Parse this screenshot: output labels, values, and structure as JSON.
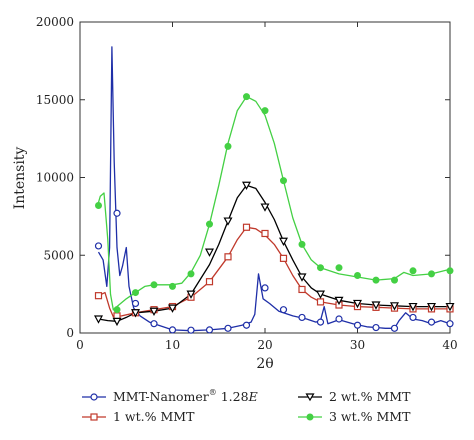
{
  "chart_data": {
    "type": "line",
    "xlabel": "2θ",
    "ylabel": "Intensity",
    "xlim": [
      0,
      40
    ],
    "ylim": [
      0,
      20000
    ],
    "x_ticks": [
      "0",
      "10",
      "20",
      "30",
      "40"
    ],
    "y_ticks": [
      "0",
      "5000",
      "10000",
      "15000",
      "20000"
    ],
    "grid": false,
    "legend_position": "bottom",
    "series": [
      {
        "name": "MMT-Nanomer® 1.28E",
        "legend_main": "MMT-Nanomer",
        "legend_sup": "®",
        "legend_tail": " 1.28",
        "legend_italic": "E",
        "color": "#1f2fa8",
        "marker": "open-circle",
        "line": [
          [
            2,
            5200
          ],
          [
            2.5,
            4700
          ],
          [
            2.9,
            3000
          ],
          [
            3.2,
            5500
          ],
          [
            3.45,
            18400
          ],
          [
            3.7,
            11000
          ],
          [
            4.0,
            5500
          ],
          [
            4.3,
            3700
          ],
          [
            4.6,
            4300
          ],
          [
            5.0,
            5500
          ],
          [
            5.3,
            3000
          ],
          [
            5.8,
            1600
          ],
          [
            6.5,
            1100
          ],
          [
            7.5,
            700
          ],
          [
            8.5,
            500
          ],
          [
            10,
            200
          ],
          [
            12,
            150
          ],
          [
            14,
            200
          ],
          [
            16,
            300
          ],
          [
            17.5,
            500
          ],
          [
            18.5,
            700
          ],
          [
            18.9,
            1200
          ],
          [
            19.3,
            3800
          ],
          [
            19.8,
            2200
          ],
          [
            20.5,
            1900
          ],
          [
            21.5,
            1400
          ],
          [
            23,
            1100
          ],
          [
            24.5,
            900
          ],
          [
            25.5,
            700
          ],
          [
            26,
            800
          ],
          [
            26.4,
            1700
          ],
          [
            26.8,
            600
          ],
          [
            28,
            850
          ],
          [
            29.5,
            600
          ],
          [
            31,
            400
          ],
          [
            33,
            300
          ],
          [
            34,
            300
          ],
          [
            34.5,
            800
          ],
          [
            35.2,
            1300
          ],
          [
            36,
            900
          ],
          [
            37,
            800
          ],
          [
            38,
            600
          ],
          [
            39,
            800
          ],
          [
            40,
            600
          ]
        ],
        "markers": [
          [
            2,
            5600
          ],
          [
            4,
            7700
          ],
          [
            6,
            1900
          ],
          [
            8,
            600
          ],
          [
            10,
            200
          ],
          [
            12,
            180
          ],
          [
            14,
            200
          ],
          [
            16,
            300
          ],
          [
            18,
            500
          ],
          [
            20,
            2900
          ],
          [
            22,
            1500
          ],
          [
            24,
            1000
          ],
          [
            26,
            700
          ],
          [
            28,
            900
          ],
          [
            30,
            500
          ],
          [
            32,
            350
          ],
          [
            34,
            300
          ],
          [
            36,
            1000
          ],
          [
            38,
            700
          ],
          [
            40,
            600
          ]
        ]
      },
      {
        "name": "1 wt.% MMT",
        "color": "#c0392b",
        "marker": "open-square",
        "line": [
          [
            2,
            2400
          ],
          [
            2.7,
            2600
          ],
          [
            3.2,
            1600
          ],
          [
            3.6,
            1050
          ],
          [
            4.5,
            1100
          ],
          [
            6,
            1300
          ],
          [
            8,
            1500
          ],
          [
            10,
            1700
          ],
          [
            12,
            2300
          ],
          [
            14,
            3300
          ],
          [
            16,
            4900
          ],
          [
            17,
            6000
          ],
          [
            18,
            6800
          ],
          [
            19,
            6700
          ],
          [
            20,
            6300
          ],
          [
            21,
            5700
          ],
          [
            22,
            4800
          ],
          [
            23,
            3700
          ],
          [
            24,
            2800
          ],
          [
            25,
            2300
          ],
          [
            26,
            2000
          ],
          [
            28,
            1800
          ],
          [
            30,
            1700
          ],
          [
            32,
            1650
          ],
          [
            34,
            1600
          ],
          [
            36,
            1550
          ],
          [
            38,
            1550
          ],
          [
            40,
            1550
          ]
        ],
        "markers": [
          [
            2,
            2400
          ],
          [
            4,
            1100
          ],
          [
            6,
            1300
          ],
          [
            8,
            1500
          ],
          [
            10,
            1700
          ],
          [
            12,
            2300
          ],
          [
            14,
            3300
          ],
          [
            16,
            4900
          ],
          [
            18,
            6800
          ],
          [
            20,
            6400
          ],
          [
            22,
            4800
          ],
          [
            24,
            2800
          ],
          [
            26,
            2000
          ],
          [
            28,
            1800
          ],
          [
            30,
            1700
          ],
          [
            32,
            1650
          ],
          [
            34,
            1600
          ],
          [
            36,
            1550
          ],
          [
            38,
            1550
          ],
          [
            40,
            1550
          ]
        ]
      },
      {
        "name": "2 wt.% MMT",
        "color": "#000000",
        "marker": "open-triangle-down",
        "line": [
          [
            2,
            900
          ],
          [
            3,
            800
          ],
          [
            4,
            750
          ],
          [
            5,
            1000
          ],
          [
            6,
            1300
          ],
          [
            8,
            1400
          ],
          [
            10,
            1600
          ],
          [
            12,
            2500
          ],
          [
            14,
            4400
          ],
          [
            15,
            5700
          ],
          [
            16,
            7200
          ],
          [
            17,
            8700
          ],
          [
            18,
            9500
          ],
          [
            19,
            9300
          ],
          [
            20,
            8400
          ],
          [
            21,
            7300
          ],
          [
            22,
            5900
          ],
          [
            23,
            4700
          ],
          [
            24,
            3600
          ],
          [
            25,
            2900
          ],
          [
            26,
            2500
          ],
          [
            28,
            2100
          ],
          [
            30,
            1900
          ],
          [
            32,
            1800
          ],
          [
            34,
            1750
          ],
          [
            36,
            1700
          ],
          [
            38,
            1700
          ],
          [
            40,
            1700
          ]
        ],
        "markers": [
          [
            2,
            900
          ],
          [
            4,
            750
          ],
          [
            6,
            1300
          ],
          [
            8,
            1400
          ],
          [
            10,
            1600
          ],
          [
            12,
            2500
          ],
          [
            14,
            5200
          ],
          [
            16,
            7200
          ],
          [
            18,
            9500
          ],
          [
            20,
            8100
          ],
          [
            22,
            5900
          ],
          [
            24,
            3600
          ],
          [
            26,
            2500
          ],
          [
            28,
            2100
          ],
          [
            30,
            1900
          ],
          [
            32,
            1800
          ],
          [
            34,
            1750
          ],
          [
            36,
            1700
          ],
          [
            38,
            1700
          ],
          [
            40,
            1700
          ]
        ]
      },
      {
        "name": "3 wt.% MMT",
        "color": "#44d044",
        "marker": "filled-circle",
        "line": [
          [
            1.9,
            8200
          ],
          [
            2.2,
            8800
          ],
          [
            2.6,
            9000
          ],
          [
            3.0,
            6000
          ],
          [
            3.3,
            2500
          ],
          [
            3.6,
            1500
          ],
          [
            4.2,
            1800
          ],
          [
            5,
            2200
          ],
          [
            6,
            2600
          ],
          [
            7,
            3000
          ],
          [
            8,
            3100
          ],
          [
            10,
            3100
          ],
          [
            11,
            3200
          ],
          [
            12,
            3900
          ],
          [
            13,
            5000
          ],
          [
            14,
            7000
          ],
          [
            15,
            9500
          ],
          [
            16,
            12200
          ],
          [
            17,
            14300
          ],
          [
            18,
            15200
          ],
          [
            19,
            14900
          ],
          [
            20,
            14000
          ],
          [
            21,
            12200
          ],
          [
            22,
            9800
          ],
          [
            23,
            7400
          ],
          [
            24,
            5700
          ],
          [
            25,
            4700
          ],
          [
            26,
            4200
          ],
          [
            28,
            3800
          ],
          [
            30,
            3600
          ],
          [
            32,
            3400
          ],
          [
            34,
            3500
          ],
          [
            35,
            3900
          ],
          [
            36,
            3700
          ],
          [
            38,
            3800
          ],
          [
            40,
            4100
          ]
        ],
        "markers": [
          [
            2,
            8200
          ],
          [
            4,
            1500
          ],
          [
            6,
            2600
          ],
          [
            8,
            3100
          ],
          [
            10,
            3000
          ],
          [
            12,
            3800
          ],
          [
            14,
            7000
          ],
          [
            16,
            12000
          ],
          [
            18,
            15200
          ],
          [
            20,
            14300
          ],
          [
            22,
            9800
          ],
          [
            24,
            5700
          ],
          [
            26,
            4200
          ],
          [
            28,
            4200
          ],
          [
            30,
            3700
          ],
          [
            32,
            3400
          ],
          [
            34,
            3400
          ],
          [
            36,
            4000
          ],
          [
            38,
            3800
          ],
          [
            40,
            4000
          ]
        ]
      }
    ]
  }
}
